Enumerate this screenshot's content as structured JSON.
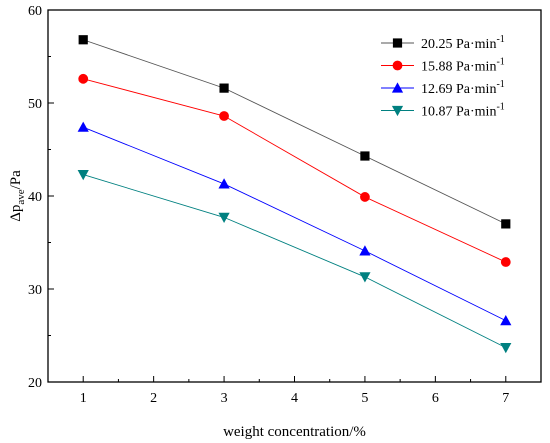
{
  "chart_data": {
    "type": "line",
    "xlabel": "weight concentration/%",
    "ylabel": {
      "main": "Δp",
      "subscript": "ave",
      "unit": "/Pa"
    },
    "xlim": [
      0.5,
      7.5
    ],
    "ylim": [
      20,
      60
    ],
    "xticks": [
      1,
      2,
      3,
      4,
      5,
      6,
      7
    ],
    "yticks": [
      20,
      30,
      40,
      50,
      60
    ],
    "grid": false,
    "legend_position": "top-right",
    "x": [
      1,
      3,
      5,
      7
    ],
    "series": [
      {
        "label_value": "20.25",
        "label_unit": "Pa·min",
        "label_sup": "-1",
        "values": [
          56.8,
          51.6,
          44.3,
          37.0
        ],
        "color": "#000000",
        "marker": "square",
        "line_color": "#555555"
      },
      {
        "label_value": "15.88",
        "label_unit": "Pa·min",
        "label_sup": "-1",
        "values": [
          52.6,
          48.6,
          39.9,
          32.9
        ],
        "color": "#ff0000",
        "marker": "circle",
        "line_color": "#ff0000"
      },
      {
        "label_value": "12.69",
        "label_unit": "Pa·min",
        "label_sup": "-1",
        "values": [
          47.4,
          41.3,
          34.1,
          26.6
        ],
        "color": "#0000ff",
        "marker": "triangle-up",
        "line_color": "#0000ff"
      },
      {
        "label_value": "10.87",
        "label_unit": "Pa·min",
        "label_sup": "-1",
        "values": [
          42.3,
          37.7,
          31.3,
          23.7
        ],
        "color": "#008080",
        "marker": "triangle-down",
        "line_color": "#008080"
      }
    ]
  }
}
